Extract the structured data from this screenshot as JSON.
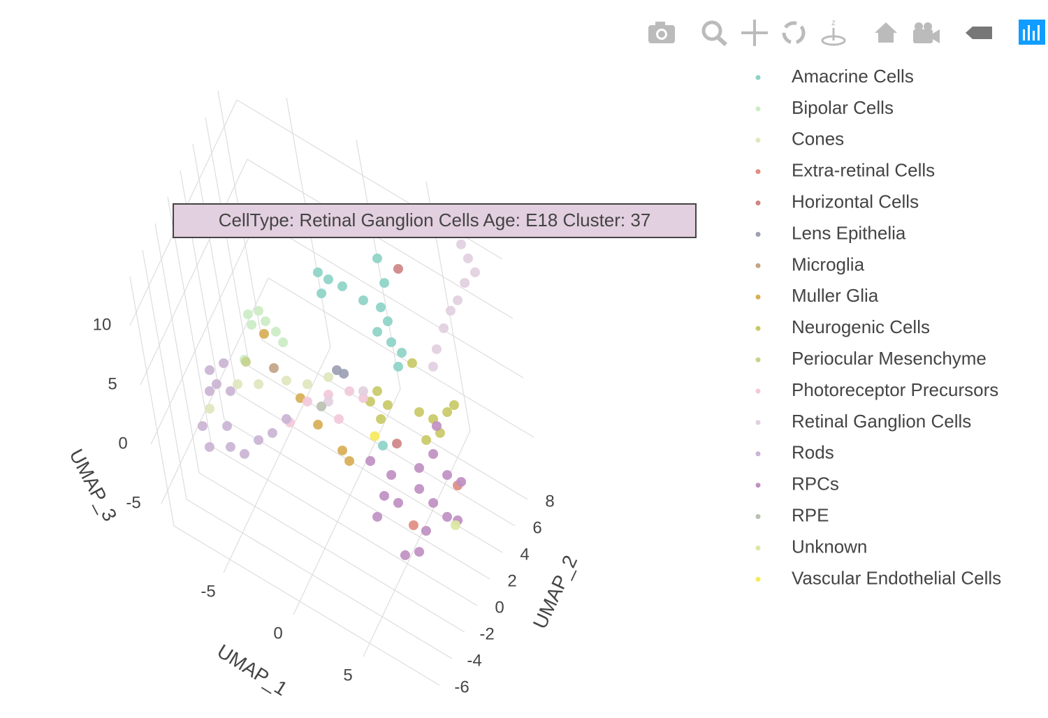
{
  "chart_data": {
    "type": "scatter3d",
    "hover_label": "CellType: Retinal Ganglion Cells Age: E18 Cluster: 37",
    "xlabel": "UMAP_1",
    "ylabel": "UMAP_2",
    "zlabel": "UMAP_3",
    "xlim": [
      -9,
      10
    ],
    "ylim": [
      -7,
      10
    ],
    "zlim": [
      -8,
      13
    ],
    "xticks": [
      -5,
      0,
      5
    ],
    "yticks": [
      -6,
      -4,
      -2,
      0,
      2,
      4,
      6,
      8
    ],
    "zticks": [
      -5,
      0,
      5,
      10
    ],
    "grid": true,
    "series": [
      {
        "name": "Amacrine Cells",
        "color": "#8dd3c7",
        "x": [
          -2.19,
          -1.45,
          -0.43,
          -2.2,
          1.05,
          2.35,
          2.71,
          1.73,
          2.7,
          3.39,
          2.91,
          2.98,
          2.76,
          4.71
        ],
        "y": [
          6,
          6,
          6,
          6,
          6,
          6,
          6,
          6,
          6,
          6,
          6,
          6,
          6,
          0
        ],
        "z": [
          4.75,
          4.68,
          4.82,
          2.97,
          4.68,
          5.01,
          4.09,
          2.51,
          2.32,
          1.92,
          0.41,
          7.51,
          9.42,
          1.74
        ]
      },
      {
        "name": "Bipolar Cells",
        "color": "#ccebc5",
        "x": [
          -3.54,
          -2.65,
          -2.24,
          -1.55,
          -1.13,
          -3.4,
          -4.46
        ],
        "y": [
          -1,
          -1,
          -1,
          -1,
          -1,
          -1,
          -1
        ],
        "z": [
          8.09,
          9.01,
          8.42,
          8.03,
          7.43,
          7.3,
          3.62
        ]
      },
      {
        "name": "Cones",
        "color": "#e0e6bd",
        "x": [
          -4.67,
          -2.99,
          -0.71,
          0.92,
          -7.25,
          2.7
        ],
        "y": [
          -2,
          -2,
          -2,
          -2,
          -2,
          -2
        ],
        "z": [
          2.53,
          3.71,
          5.62,
          6.47,
          -1.36,
          8.32
        ]
      },
      {
        "name": "Extra-retinal Cells",
        "color": "#e08d80",
        "x": [
          4.66,
          8.75
        ],
        "y": [
          2,
          2
        ],
        "z": [
          -7.24,
          -1.0
        ]
      },
      {
        "name": "Horizontal Cells",
        "color": "#cf8585",
        "x": [
          2.91,
          5.86
        ],
        "y": [
          8,
          0
        ],
        "z": [
          6.41,
          2.72
        ]
      },
      {
        "name": "Lens Epithelia",
        "color": "#9ca0b2",
        "x": [
          2.09,
          2.6
        ],
        "y": [
          0,
          0
        ],
        "z": [
          6.24,
          6.3
        ]
      },
      {
        "name": "Microglia",
        "color": "#c3a384",
        "x": [
          -2.92
        ],
        "y": [
          0
        ],
        "z": [
          2.88
        ]
      },
      {
        "name": "Muller Glia",
        "color": "#d8ae55",
        "x": [
          -3.22,
          -0.19,
          1.4,
          1.81,
          -1.22
        ],
        "y": [
          0,
          0,
          0,
          0,
          0
        ],
        "z": [
          5.55,
          0.04,
          -1.01,
          -1.61,
          1.55
        ]
      },
      {
        "name": "Neurogenic Cells",
        "color": "#c9c967",
        "x": [
          3.65,
          4.29,
          3.54,
          2.94,
          6.71,
          7.73,
          6.88,
          8.09,
          6.88,
          7.53,
          6.84
        ],
        "y": [
          2,
          2,
          2,
          2,
          2,
          2,
          5,
          2,
          2,
          5,
          2
        ],
        "z": [
          3.34,
          2.62,
          0.91,
          1.96,
          3.74,
          3.87,
          0.5,
          2.95,
          1.5,
          1.55,
          7.95
        ]
      },
      {
        "name": "Periocular Mesenchyme",
        "color": "#c5d38c",
        "x": [
          -5.07
        ],
        "y": [
          0
        ],
        "z": [
          1.89
        ]
      },
      {
        "name": "Photoreceptor Precursors",
        "color": "#f2c9da",
        "x": [
          -0.71,
          1.07,
          2.8,
          1.56,
          3.82,
          -2.4
        ],
        "y": [
          0,
          0,
          0,
          0,
          0,
          0
        ],
        "z": [
          1.62,
          3.46,
          4.97,
          1.75,
          5.11,
          -1.34
        ]
      },
      {
        "name": "Retinal Ganglion Cells",
        "color": "#e2cfdf",
        "x": [
          7.6,
          7.96,
          8.32,
          7.34,
          6.53,
          5.82,
          5.02,
          4.16,
          3.63,
          0.97,
          3.91
        ],
        "y": [
          9,
          9,
          9,
          9,
          9,
          9,
          9,
          9,
          9,
          0,
          0
        ],
        "z": [
          10.66,
          9.74,
          8.82,
          7.24,
          5.2,
          3.82,
          1.78,
          -0.59,
          -2.43,
          2.8,
          5.76
        ]
      },
      {
        "name": "Rods",
        "color": "#cab4d4",
        "x": [
          -6.02,
          -5.66,
          -4.8,
          -6.32,
          -4.64,
          -5.41,
          -7.11,
          -5.43,
          -4.41,
          -3.09,
          -1.88,
          -7.37,
          -0.56
        ],
        "y": [
          -3,
          -3,
          -3,
          -3,
          -3,
          -3,
          -3,
          -3,
          -3,
          -3,
          -3,
          -3,
          -3
        ],
        "z": [
          3.87,
          2.95,
          5.32,
          1.89,
          3.08,
          -0.41,
          -3.37,
          -2.18,
          -2.05,
          0.05,
          1.5,
          -1.79,
          3.61
        ]
      },
      {
        "name": "RPCs",
        "color": "#bf8fc2",
        "x": [
          2.11,
          3.59,
          5.92,
          7.24,
          8.06,
          9.08,
          5.63,
          3.75,
          2.73,
          6.55,
          7.47,
          7.66,
          6.81,
          5.64,
          8.26,
          7.91,
          3.95
        ],
        "y": [
          2,
          2,
          2,
          2,
          2,
          2,
          2,
          2,
          2,
          2,
          2,
          -1,
          -1,
          -1,
          2,
          2,
          -1
        ],
        "z": [
          -3.63,
          -3.76,
          -1.53,
          0.58,
          -0.61,
          -0.47,
          -3.5,
          -6.0,
          -6.13,
          -4.03,
          -4.55,
          -2.24,
          -4.61,
          -5.72,
          -4.29,
          3.41,
          -3.68
        ]
      },
      {
        "name": "RPE",
        "color": "#b8c1b0",
        "x": [
          0.34
        ],
        "y": [
          0
        ],
        "z": [
          1.95
        ]
      },
      {
        "name": "Unknown",
        "color": "#dbe8a2",
        "x": [
          8.02
        ],
        "y": [
          2
        ],
        "z": [
          -4.87
        ]
      },
      {
        "name": "Vascular Endothelial Cells",
        "color": "#f6ea5a",
        "x": [
          4.19
        ],
        "y": [
          0
        ],
        "z": [
          2.16
        ]
      }
    ]
  }
}
